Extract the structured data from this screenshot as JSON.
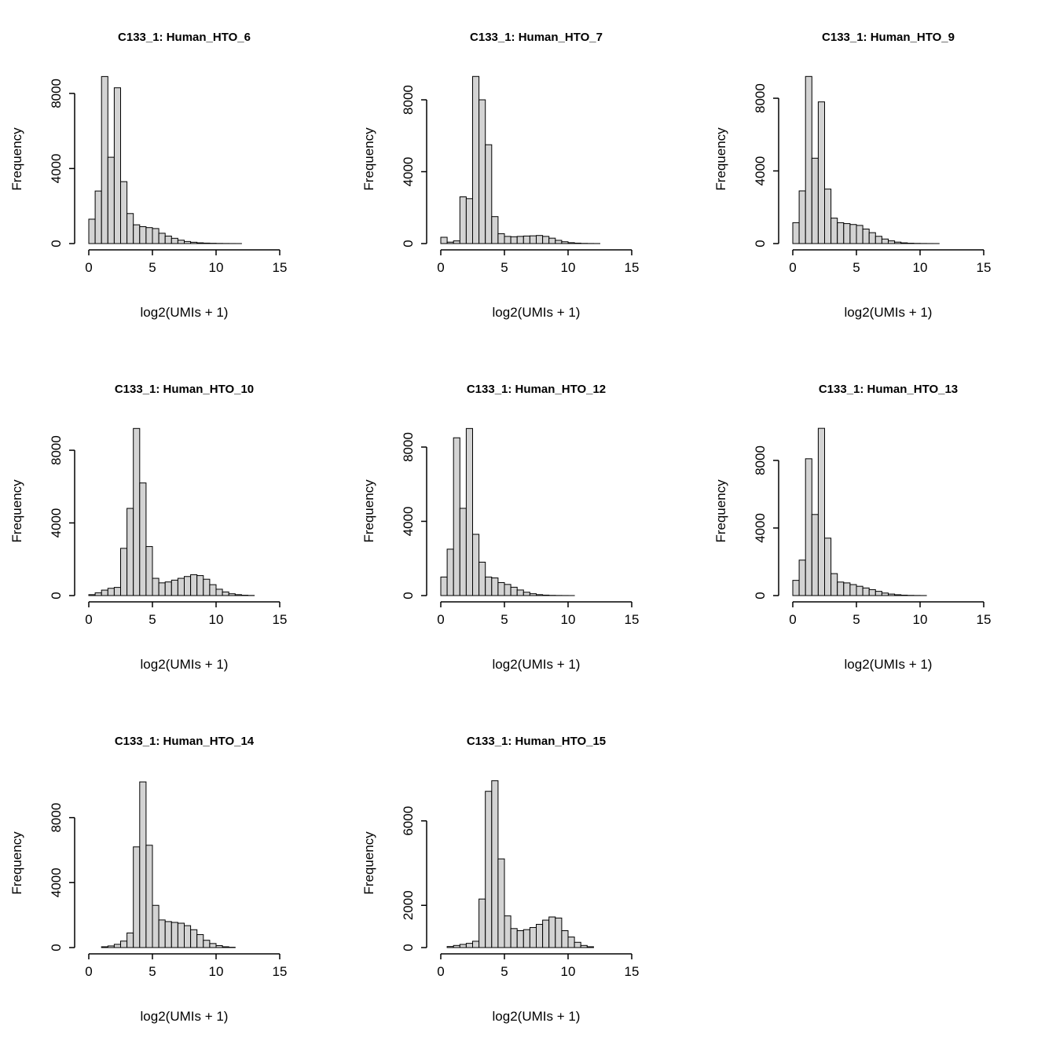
{
  "figure": {
    "background": "#ffffff",
    "bar_fill": "#d3d3d3",
    "bar_stroke": "#000000",
    "xlabel": "log2(UMIs + 1)",
    "ylabel": "Frequency",
    "xticks": [
      0,
      5,
      10,
      15
    ],
    "xlim": [
      0,
      17
    ],
    "bin_start": 0,
    "bin_width": 0.5,
    "grid": false,
    "legend": false
  },
  "chart_data": [
    {
      "type": "bar",
      "subtype": "histogram",
      "title": "C133_1: Human_HTO_6",
      "xlabel": "log2(UMIs + 1)",
      "ylabel": "Frequency",
      "yticks": [
        0,
        4000,
        8000
      ],
      "ylim": [
        0,
        9000
      ],
      "bin_start": 0,
      "bin_width": 0.5,
      "counts": [
        1300,
        2800,
        8900,
        4600,
        8300,
        3300,
        1600,
        1000,
        900,
        850,
        800,
        550,
        400,
        280,
        180,
        110,
        70,
        40,
        25,
        15,
        8,
        4,
        2,
        1
      ]
    },
    {
      "type": "bar",
      "subtype": "histogram",
      "title": "C133_1: Human_HTO_7",
      "xlabel": "log2(UMIs + 1)",
      "ylabel": "Frequency",
      "yticks": [
        0,
        4000,
        8000
      ],
      "ylim": [
        0,
        9400
      ],
      "bin_start": 0,
      "bin_width": 0.5,
      "counts": [
        350,
        80,
        150,
        2600,
        2500,
        9300,
        8000,
        5500,
        1500,
        550,
        400,
        380,
        400,
        420,
        430,
        450,
        400,
        300,
        180,
        100,
        50,
        25,
        10,
        5,
        2
      ]
    },
    {
      "type": "bar",
      "subtype": "histogram",
      "title": "C133_1: Human_HTO_9",
      "xlabel": "log2(UMIs + 1)",
      "ylabel": "Frequency",
      "yticks": [
        0,
        4000,
        8000
      ],
      "ylim": [
        0,
        9300
      ],
      "bin_start": 0,
      "bin_width": 0.5,
      "counts": [
        1150,
        2900,
        9200,
        4700,
        7800,
        3000,
        1400,
        1150,
        1100,
        1050,
        1000,
        800,
        600,
        400,
        250,
        150,
        80,
        40,
        20,
        10,
        5,
        2,
        1
      ]
    },
    {
      "type": "bar",
      "subtype": "histogram",
      "title": "C133_1: Human_HTO_10",
      "xlabel": "log2(UMIs + 1)",
      "ylabel": "Frequency",
      "yticks": [
        0,
        4000,
        8000
      ],
      "ylim": [
        0,
        9300
      ],
      "bin_start": 0,
      "bin_width": 0.5,
      "counts": [
        50,
        150,
        300,
        400,
        450,
        2600,
        4800,
        9200,
        6200,
        2700,
        950,
        700,
        750,
        850,
        950,
        1050,
        1150,
        1100,
        900,
        600,
        350,
        200,
        100,
        50,
        20,
        8
      ]
    },
    {
      "type": "bar",
      "subtype": "histogram",
      "title": "C133_1: Human_HTO_12",
      "xlabel": "log2(UMIs + 1)",
      "ylabel": "Frequency",
      "yticks": [
        0,
        4000,
        8000
      ],
      "ylim": [
        0,
        9100
      ],
      "bin_start": 0,
      "bin_width": 0.5,
      "counts": [
        1000,
        2500,
        8500,
        4700,
        9000,
        3300,
        1800,
        1000,
        950,
        700,
        600,
        450,
        300,
        180,
        100,
        50,
        25,
        12,
        6,
        3,
        1
      ]
    },
    {
      "type": "bar",
      "subtype": "histogram",
      "title": "C133_1: Human_HTO_13",
      "xlabel": "log2(UMIs + 1)",
      "ylabel": "Frequency",
      "yticks": [
        0,
        4000,
        8000
      ],
      "ylim": [
        0,
        10000
      ],
      "bin_start": 0,
      "bin_width": 0.5,
      "counts": [
        900,
        2100,
        8100,
        4800,
        9900,
        3400,
        1300,
        800,
        750,
        650,
        550,
        450,
        350,
        250,
        150,
        90,
        50,
        25,
        12,
        6,
        3
      ]
    },
    {
      "type": "bar",
      "subtype": "histogram",
      "title": "C133_1: Human_HTO_14",
      "xlabel": "log2(UMIs + 1)",
      "ylabel": "Frequency",
      "yticks": [
        0,
        4000,
        8000
      ],
      "ylim": [
        0,
        10400
      ],
      "bin_start": 0,
      "bin_width": 0.5,
      "counts": [
        0,
        0,
        50,
        100,
        200,
        400,
        900,
        6200,
        10200,
        6300,
        2600,
        1700,
        1600,
        1550,
        1500,
        1350,
        1100,
        800,
        450,
        250,
        120,
        50,
        20
      ]
    },
    {
      "type": "bar",
      "subtype": "histogram",
      "title": "C133_1: Human_HTO_15",
      "xlabel": "log2(UMIs + 1)",
      "ylabel": "Frequency",
      "yticks": [
        0,
        2000,
        6000
      ],
      "ylim": [
        0,
        8000
      ],
      "bin_start": 0,
      "bin_width": 0.5,
      "counts": [
        0,
        50,
        100,
        150,
        200,
        300,
        2300,
        7400,
        7900,
        4200,
        1500,
        900,
        800,
        850,
        950,
        1100,
        1300,
        1450,
        1400,
        800,
        500,
        250,
        100,
        40
      ]
    }
  ]
}
